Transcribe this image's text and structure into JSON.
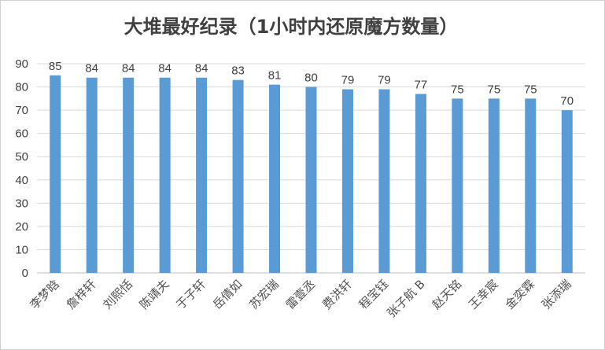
{
  "chart_data": {
    "type": "bar",
    "title": "大堆最好纪录（1小时内还原魔方数量）",
    "xlabel": "",
    "ylabel": "",
    "ylim": [
      0,
      90
    ],
    "yticks": [
      0,
      10,
      20,
      30,
      40,
      50,
      60,
      70,
      80,
      90
    ],
    "grid": true,
    "legend": "none",
    "bar_color": "#5b9bd5",
    "categories": [
      "李梦晗",
      "詹梓轩",
      "刘熙恬",
      "陈靖夫",
      "于子轩",
      "岳倩如",
      "苏宏瑞",
      "雷壹丞",
      "费洪轩",
      "程宝钰",
      "张子航 B",
      "赵天铭",
      "王幸宸",
      "金奕霖",
      "张添瑞"
    ],
    "values": [
      85,
      84,
      84,
      84,
      84,
      83,
      81,
      80,
      79,
      79,
      77,
      75,
      75,
      75,
      70
    ],
    "data_labels": [
      "85",
      "84",
      "84",
      "84",
      "84",
      "83",
      "81",
      "80",
      "79",
      "79",
      "77",
      "75",
      "75",
      "75",
      "70"
    ]
  }
}
